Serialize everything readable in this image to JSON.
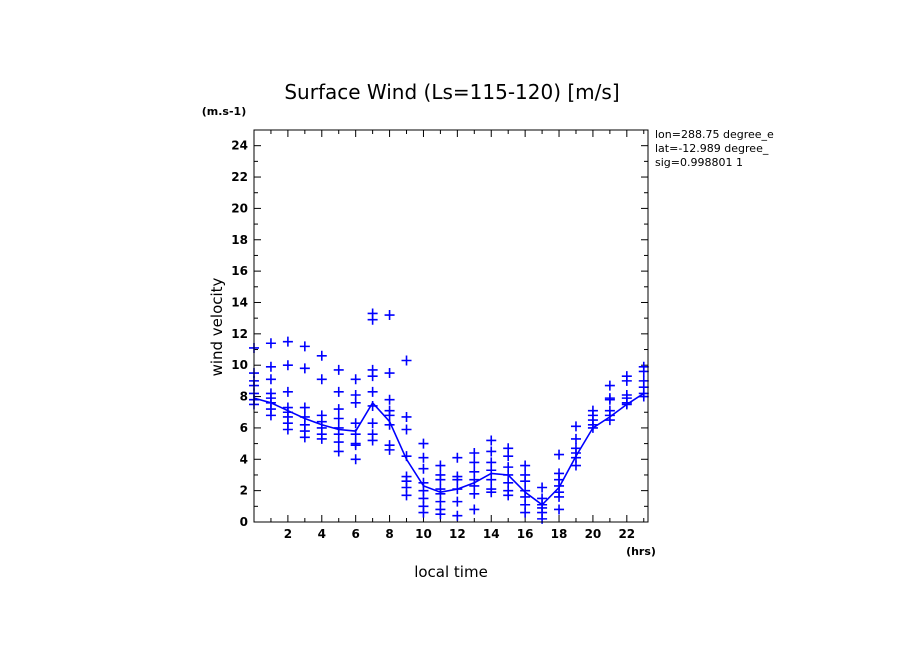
{
  "chart_data": {
    "type": "scatter",
    "title": "Surface Wind  (Ls=115-120) [m/s]",
    "xlabel": "local time",
    "ylabel": "wind velocity",
    "x_units": "(hrs)",
    "y_units": "(m.s-1)",
    "xlim": [
      0,
      23.25
    ],
    "ylim": [
      0,
      25
    ],
    "x_ticks": [
      2,
      4,
      6,
      8,
      10,
      12,
      14,
      16,
      18,
      20,
      22
    ],
    "y_ticks": [
      0,
      2,
      4,
      6,
      8,
      10,
      12,
      14,
      16,
      18,
      20,
      22,
      24
    ],
    "info_lines": [
      "lon=288.75 degree_e",
      "lat=-12.989 degree_",
      "sig=0.998801 1"
    ],
    "color": "#0000ff",
    "series": [
      {
        "type": "scatter",
        "marker": "+",
        "points": [
          [
            0,
            11.1
          ],
          [
            0,
            9.5
          ],
          [
            0,
            9.0
          ],
          [
            0,
            8.7
          ],
          [
            0,
            8.2
          ],
          [
            0,
            7.8
          ],
          [
            0,
            7.5
          ],
          [
            1,
            11.4
          ],
          [
            1,
            9.9
          ],
          [
            1,
            9.1
          ],
          [
            1,
            8.2
          ],
          [
            1,
            7.9
          ],
          [
            1,
            7.6
          ],
          [
            1,
            7.2
          ],
          [
            1,
            6.8
          ],
          [
            2,
            11.5
          ],
          [
            2,
            10.0
          ],
          [
            2,
            8.3
          ],
          [
            2,
            7.3
          ],
          [
            2,
            7.0
          ],
          [
            2,
            6.7
          ],
          [
            2,
            6.3
          ],
          [
            2,
            5.9
          ],
          [
            3,
            11.2
          ],
          [
            3,
            9.8
          ],
          [
            3,
            7.3
          ],
          [
            3,
            6.7
          ],
          [
            3,
            6.2
          ],
          [
            3,
            5.8
          ],
          [
            3,
            5.4
          ],
          [
            4,
            10.6
          ],
          [
            4,
            9.1
          ],
          [
            4,
            6.8
          ],
          [
            4,
            6.4
          ],
          [
            4,
            6.0
          ],
          [
            4,
            5.6
          ],
          [
            4,
            5.3
          ],
          [
            5,
            9.7
          ],
          [
            5,
            8.3
          ],
          [
            5,
            7.2
          ],
          [
            5,
            6.6
          ],
          [
            5,
            6.0
          ],
          [
            5,
            5.6
          ],
          [
            5,
            5.1
          ],
          [
            5,
            4.5
          ],
          [
            6,
            9.1
          ],
          [
            6,
            8.1
          ],
          [
            6,
            7.6
          ],
          [
            6,
            6.3
          ],
          [
            6,
            5.6
          ],
          [
            6,
            5.0
          ],
          [
            6,
            4.9
          ],
          [
            6,
            4.0
          ],
          [
            7,
            13.3
          ],
          [
            7,
            12.9
          ],
          [
            7,
            9.7
          ],
          [
            7,
            9.3
          ],
          [
            7,
            8.3
          ],
          [
            7,
            7.4
          ],
          [
            7,
            6.3
          ],
          [
            7,
            5.6
          ],
          [
            7,
            5.2
          ],
          [
            8,
            13.2
          ],
          [
            8,
            9.5
          ],
          [
            8,
            7.8
          ],
          [
            8,
            7.1
          ],
          [
            8,
            6.8
          ],
          [
            8,
            6.2
          ],
          [
            8,
            4.9
          ],
          [
            8,
            4.6
          ],
          [
            9,
            10.3
          ],
          [
            9,
            6.7
          ],
          [
            9,
            5.9
          ],
          [
            9,
            4.2
          ],
          [
            9,
            2.9
          ],
          [
            9,
            2.6
          ],
          [
            9,
            2.2
          ],
          [
            9,
            1.7
          ],
          [
            10,
            5.0
          ],
          [
            10,
            4.1
          ],
          [
            10,
            3.4
          ],
          [
            10,
            2.5
          ],
          [
            10,
            2.0
          ],
          [
            10,
            1.5
          ],
          [
            10,
            1.0
          ],
          [
            10,
            0.6
          ],
          [
            11,
            3.6
          ],
          [
            11,
            3.0
          ],
          [
            11,
            2.7
          ],
          [
            11,
            2.1
          ],
          [
            11,
            1.8
          ],
          [
            11,
            1.3
          ],
          [
            11,
            0.8
          ],
          [
            11,
            0.5
          ],
          [
            12,
            4.1
          ],
          [
            12,
            2.9
          ],
          [
            12,
            2.7
          ],
          [
            12,
            2.1
          ],
          [
            12,
            1.3
          ],
          [
            12,
            0.4
          ],
          [
            13,
            4.4
          ],
          [
            13,
            3.8
          ],
          [
            13,
            3.2
          ],
          [
            13,
            2.7
          ],
          [
            13,
            2.3
          ],
          [
            13,
            1.8
          ],
          [
            13,
            0.8
          ],
          [
            14,
            5.2
          ],
          [
            14,
            4.5
          ],
          [
            14,
            3.8
          ],
          [
            14,
            3.3
          ],
          [
            14,
            2.7
          ],
          [
            14,
            2.1
          ],
          [
            14,
            1.9
          ],
          [
            15,
            4.7
          ],
          [
            15,
            4.2
          ],
          [
            15,
            3.5
          ],
          [
            15,
            3.0
          ],
          [
            15,
            2.5
          ],
          [
            15,
            2.0
          ],
          [
            15,
            1.7
          ],
          [
            16,
            3.6
          ],
          [
            16,
            3.0
          ],
          [
            16,
            2.6
          ],
          [
            16,
            2.0
          ],
          [
            16,
            1.6
          ],
          [
            16,
            1.1
          ],
          [
            16,
            0.6
          ],
          [
            17,
            2.2
          ],
          [
            17,
            1.5
          ],
          [
            17,
            1.1
          ],
          [
            17,
            0.9
          ],
          [
            17,
            0.6
          ],
          [
            17,
            0.2
          ],
          [
            18,
            4.3
          ],
          [
            18,
            3.1
          ],
          [
            18,
            2.7
          ],
          [
            18,
            2.3
          ],
          [
            18,
            1.9
          ],
          [
            18,
            1.6
          ],
          [
            18,
            0.8
          ],
          [
            19,
            6.1
          ],
          [
            19,
            5.3
          ],
          [
            19,
            4.7
          ],
          [
            19,
            4.4
          ],
          [
            19,
            4.1
          ],
          [
            19,
            3.6
          ],
          [
            20,
            7.1
          ],
          [
            20,
            6.8
          ],
          [
            20,
            6.5
          ],
          [
            20,
            6.2
          ],
          [
            20,
            6.0
          ],
          [
            21,
            8.7
          ],
          [
            21,
            7.9
          ],
          [
            21,
            7.8
          ],
          [
            21,
            7.1
          ],
          [
            21,
            6.8
          ],
          [
            21,
            6.5
          ],
          [
            22,
            9.3
          ],
          [
            22,
            9.0
          ],
          [
            22,
            8.1
          ],
          [
            22,
            7.9
          ],
          [
            22,
            7.6
          ],
          [
            22,
            7.5
          ],
          [
            23,
            9.9
          ],
          [
            23,
            9.6
          ],
          [
            23,
            9.0
          ],
          [
            23,
            8.6
          ],
          [
            23,
            8.2
          ],
          [
            23,
            8.0
          ]
        ]
      },
      {
        "type": "line",
        "x": [
          0,
          1,
          2,
          3,
          4,
          5,
          6,
          7,
          8,
          9,
          10,
          11,
          12,
          13,
          14,
          15,
          16,
          17,
          18,
          19,
          20,
          21,
          22,
          23
        ],
        "values": [
          7.9,
          7.6,
          7.1,
          6.6,
          6.2,
          5.9,
          5.8,
          7.6,
          6.4,
          4.0,
          2.3,
          1.9,
          2.1,
          2.5,
          3.1,
          3.0,
          1.9,
          1.1,
          2.2,
          4.2,
          6.0,
          6.7,
          7.5,
          8.2
        ]
      }
    ]
  }
}
